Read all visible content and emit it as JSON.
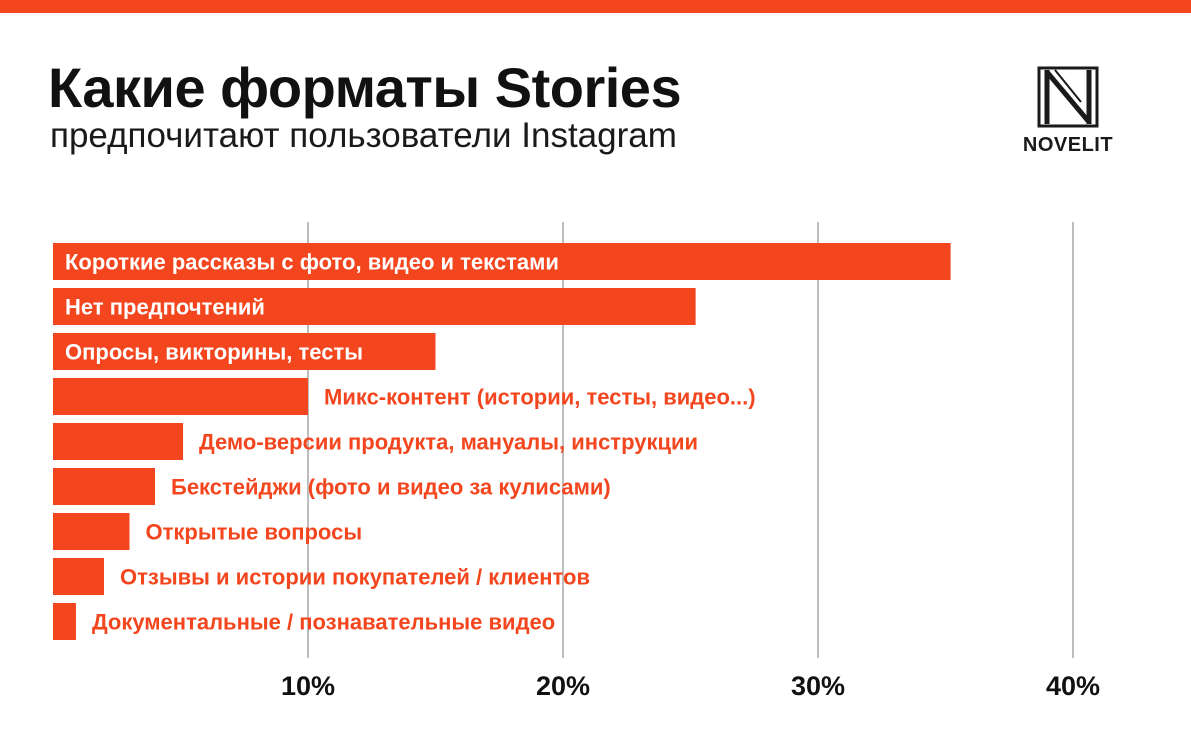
{
  "header": {
    "title": "Какие форматы Stories",
    "subtitle": "предпочитают пользователи Instagram"
  },
  "logo": {
    "text": "NOVELIT",
    "icon": "n-logo-icon"
  },
  "colors": {
    "accent": "#F4461E",
    "text": "#111111",
    "grid": "#BDBDBD"
  },
  "chart_data": {
    "type": "bar",
    "orientation": "horizontal",
    "categories": [
      "Короткие рассказы с фото, видео и текстами",
      "Нет предпочтений",
      "Опросы, викторины, тесты",
      "Микс-контент (истории, тесты, видео...)",
      "Демо-версии продукта, мануалы, инструкции",
      "Бекстейджи (фото и видео за кулисами)",
      "Открытые вопросы",
      "Отзывы и истории покупателей / клиентов",
      "Документальные / познавательные видео"
    ],
    "values": [
      35.2,
      25.2,
      15.0,
      10.0,
      5.1,
      4.0,
      3.0,
      2.0,
      0.9
    ],
    "label_inside": [
      true,
      true,
      true,
      false,
      false,
      false,
      false,
      false,
      false
    ],
    "xlim": [
      0,
      40
    ],
    "xticks": [
      10,
      20,
      30,
      40
    ],
    "tick_labels": [
      "10%",
      "20%",
      "30%",
      "40%"
    ],
    "grid": true
  }
}
